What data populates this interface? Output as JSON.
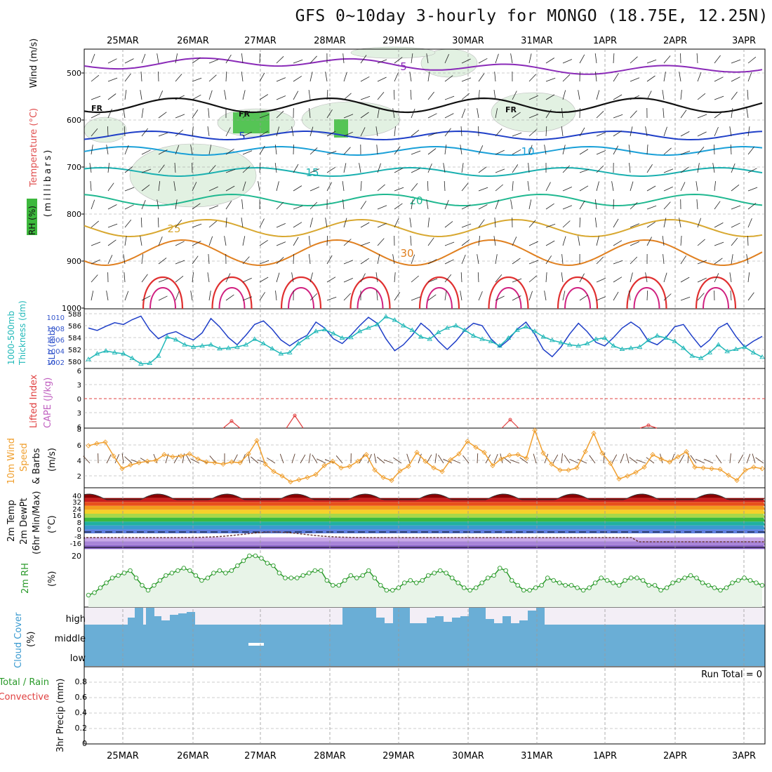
{
  "title": "GFS 0~10day 3-hourly for MONGO (18.75E, 12.25N)",
  "dates": [
    "25MAR",
    "26MAR",
    "27MAR",
    "28MAR",
    "29MAR",
    "30MAR",
    "31MAR",
    "1APR",
    "2APR",
    "3APR"
  ],
  "colors": {
    "frame": "#000000",
    "grid": "#9a9a9a",
    "rh_fill": "#dcefdc",
    "cloud": "#6aaed6",
    "cloud_bg": "#f3eef6",
    "thickness": "#1f3fc8",
    "slp": "#20b8b8",
    "lifted": "#e04040",
    "wind_speed": "#f0a030",
    "rh2m": "#2a9a2a"
  },
  "panels": {
    "upper_air": {
      "label_wind": "Wind (m/s)",
      "label_temp": "Temperature (°C)",
      "label_rh": "RH (%)",
      "ylabel": "(millibars)",
      "yticks": [
        "500",
        "600",
        "700",
        "800",
        "900",
        "1000"
      ],
      "contour_labels": [
        "5",
        "10",
        "15",
        "20",
        "25",
        "30",
        "5",
        "10",
        "15",
        "30",
        "FR",
        "FR",
        "FR"
      ]
    },
    "thickness": {
      "label1": "1000-500mb",
      "label2": "Thickness (dm)",
      "label3": "SLP (mb)",
      "yticks_left": [
        "588",
        "586",
        "584",
        "582",
        "580"
      ],
      "yticks_right": [
        "1010",
        "1008",
        "1006",
        "1004",
        "1002"
      ]
    },
    "lifted": {
      "label1": "Lifted Index",
      "label2": "CAPE (J/kg)",
      "yticks": [
        "6",
        "3",
        "0",
        "3",
        "6"
      ]
    },
    "wind10m": {
      "label1": "10m Wind",
      "label2": "Speed",
      "label3": "& Barbs",
      "unit": "(m/s)",
      "yticks": [
        "8",
        "6",
        "4",
        "2"
      ]
    },
    "temp2m": {
      "label1": "2m Temp",
      "label2": "2m DewPt",
      "label3": "(6hr Min/Max)",
      "unit": "(°C)",
      "yticks": [
        "40",
        "32",
        "24",
        "16",
        "8",
        "0",
        "-8",
        "-16"
      ]
    },
    "rh2m": {
      "label": "2m RH",
      "unit": "(%)",
      "yticks": [
        "20"
      ]
    },
    "cloud": {
      "label1": "Cloud Cover",
      "label2": "(%)",
      "levels": [
        "high",
        "middle",
        "low"
      ]
    },
    "precip": {
      "label1": "Total / Rain",
      "label2": "Convective",
      "label3": "3hr Precip (mm)",
      "yticks": [
        "0.8",
        "0.6",
        "0.4",
        "0.2",
        "0"
      ],
      "run_total": "Run Total = 0"
    }
  },
  "chart_data": [
    {
      "type": "line",
      "title": "1000-500mb Thickness (dm) / SLP (mb)",
      "x": [
        "24MAR15",
        "24MAR18",
        "24MAR21",
        "25MAR00",
        "25MAR03",
        "25MAR06",
        "25MAR09",
        "25MAR12",
        "25MAR15",
        "25MAR18",
        "25MAR21",
        "26MAR00",
        "26MAR03",
        "26MAR06",
        "26MAR09",
        "26MAR12",
        "26MAR15",
        "26MAR18",
        "26MAR21",
        "27MAR00",
        "27MAR03",
        "27MAR06",
        "27MAR09",
        "27MAR12",
        "27MAR15",
        "27MAR18",
        "27MAR21",
        "28MAR00",
        "28MAR03",
        "28MAR06",
        "28MAR09",
        "28MAR12",
        "28MAR15",
        "28MAR18",
        "28MAR21",
        "29MAR00",
        "29MAR03",
        "29MAR06",
        "29MAR09",
        "29MAR12",
        "29MAR15",
        "29MAR18",
        "29MAR21",
        "30MAR00",
        "30MAR03",
        "30MAR06",
        "30MAR09",
        "30MAR12",
        "30MAR15",
        "30MAR18",
        "30MAR21",
        "31MAR00",
        "31MAR03",
        "31MAR06",
        "31MAR09",
        "31MAR12",
        "31MAR15",
        "31MAR18",
        "31MAR21",
        "1APR00",
        "1APR03",
        "1APR06",
        "1APR09",
        "1APR12",
        "1APR15",
        "1APR18",
        "1APR21",
        "2APR00",
        "2APR03",
        "2APR06",
        "2APR09",
        "2APR12",
        "2APR15",
        "2APR18",
        "2APR21",
        "3APR00",
        "3APR03",
        "3APR06"
      ],
      "series": [
        {
          "name": "Thickness",
          "values": [
            585.6,
            585.2,
            585.9,
            586.5,
            586.2,
            587.0,
            587.6,
            585.3,
            583.8,
            584.6,
            585.0,
            584.2,
            583.6,
            584.8,
            587.2,
            585.8,
            584.0,
            582.8,
            584.4,
            586.2,
            586.8,
            585.4,
            583.6,
            582.6,
            583.6,
            584.4,
            586.6,
            585.6,
            583.8,
            583.0,
            584.4,
            586.0,
            587.4,
            586.4,
            583.8,
            581.8,
            582.8,
            584.4,
            586.4,
            585.2,
            583.4,
            582.0,
            583.4,
            585.2,
            586.4,
            586.0,
            583.8,
            582.4,
            583.6,
            585.4,
            586.6,
            584.6,
            582.0,
            580.8,
            582.4,
            584.6,
            586.4,
            585.0,
            583.2,
            582.6,
            584.0,
            585.6,
            586.6,
            585.6,
            583.4,
            582.8,
            584.0,
            585.8,
            586.2,
            584.2,
            582.4,
            583.6,
            585.6,
            586.4,
            584.2,
            582.4,
            583.4,
            584.2
          ]
        },
        {
          "name": "SLP",
          "values": [
            1003.0,
            1004.0,
            1004.5,
            1004.2,
            1004.0,
            1003.2,
            1002.2,
            1002.3,
            1003.6,
            1007.0,
            1006.5,
            1005.6,
            1005.2,
            1005.4,
            1005.6,
            1004.9,
            1005.0,
            1005.2,
            1005.6,
            1006.6,
            1005.8,
            1004.9,
            1004.0,
            1004.2,
            1005.8,
            1006.9,
            1008.0,
            1008.3,
            1007.6,
            1006.8,
            1006.9,
            1008.0,
            1008.6,
            1009.2,
            1010.6,
            1010.0,
            1009.0,
            1008.2,
            1007.0,
            1006.6,
            1007.8,
            1008.6,
            1009.0,
            1008.2,
            1007.2,
            1006.6,
            1006.2,
            1005.4,
            1006.8,
            1008.2,
            1008.8,
            1008.0,
            1007.0,
            1006.4,
            1006.0,
            1005.6,
            1005.4,
            1005.8,
            1006.6,
            1006.8,
            1005.4,
            1004.8,
            1005.0,
            1005.2,
            1006.4,
            1007.2,
            1006.8,
            1006.2,
            1005.0,
            1003.6,
            1003.2,
            1004.2,
            1005.6,
            1004.4,
            1004.8,
            1005.2,
            1004.2,
            1003.4
          ]
        }
      ],
      "ylim": [
        579,
        589
      ],
      "y2lim": [
        1000,
        1012
      ]
    },
    {
      "type": "line",
      "title": "10m Wind Speed",
      "series": [
        {
          "name": "Speed (m/s)",
          "values": [
            5.7,
            6.0,
            6.2,
            4.3,
            2.6,
            3.1,
            3.4,
            3.6,
            3.7,
            4.5,
            4.2,
            4.3,
            4.6,
            3.9,
            3.5,
            3.4,
            3.2,
            3.5,
            3.4,
            4.6,
            6.4,
            3.2,
            2.2,
            1.6,
            0.8,
            1.1,
            1.4,
            1.8,
            3.0,
            3.6,
            2.7,
            2.9,
            3.6,
            4.5,
            2.4,
            1.4,
            1.0,
            2.3,
            2.9,
            4.8,
            3.6,
            2.7,
            2.2,
            3.8,
            4.6,
            6.3,
            5.5,
            4.8,
            3.0,
            3.9,
            4.4,
            4.5,
            4.0,
            7.8,
            4.7,
            3.2,
            2.4,
            2.4,
            2.7,
            4.9,
            7.4,
            4.7,
            3.3,
            1.2,
            1.6,
            2.1,
            2.8,
            4.5,
            3.9,
            3.5,
            4.2,
            4.9,
            2.8,
            2.7,
            2.6,
            2.5,
            1.7,
            1.0,
            2.4,
            2.8,
            2.6
          ]
        }
      ],
      "ylim": [
        0,
        8
      ]
    },
    {
      "type": "line",
      "title": "2m RH",
      "series": [
        {
          "name": "RH (%)",
          "values": [
            4,
            5,
            7,
            9,
            11,
            12,
            13,
            14,
            11,
            8,
            6,
            8,
            10,
            12,
            13,
            14,
            15,
            14,
            12,
            10,
            11,
            13,
            14,
            13,
            14,
            16,
            18,
            20,
            20,
            19,
            17,
            16,
            13,
            11,
            11,
            11,
            12,
            13,
            14,
            14,
            10,
            8,
            8,
            10,
            12,
            11,
            12,
            14,
            11,
            8,
            6,
            6,
            7,
            9,
            10,
            9,
            10,
            12,
            13,
            14,
            13,
            11,
            9,
            7,
            6,
            7,
            9,
            11,
            12,
            15,
            14,
            10,
            8,
            6,
            6,
            7,
            8,
            11,
            10,
            9,
            8,
            8,
            7,
            6,
            7,
            9,
            11,
            10,
            9,
            8,
            10,
            11,
            11,
            10,
            8,
            8,
            6,
            7,
            9,
            10,
            11,
            12,
            11,
            9,
            8,
            7,
            6,
            7,
            9,
            10,
            11,
            10,
            9,
            8
          ]
        }
      ],
      "ylim": [
        0,
        22
      ]
    }
  ]
}
